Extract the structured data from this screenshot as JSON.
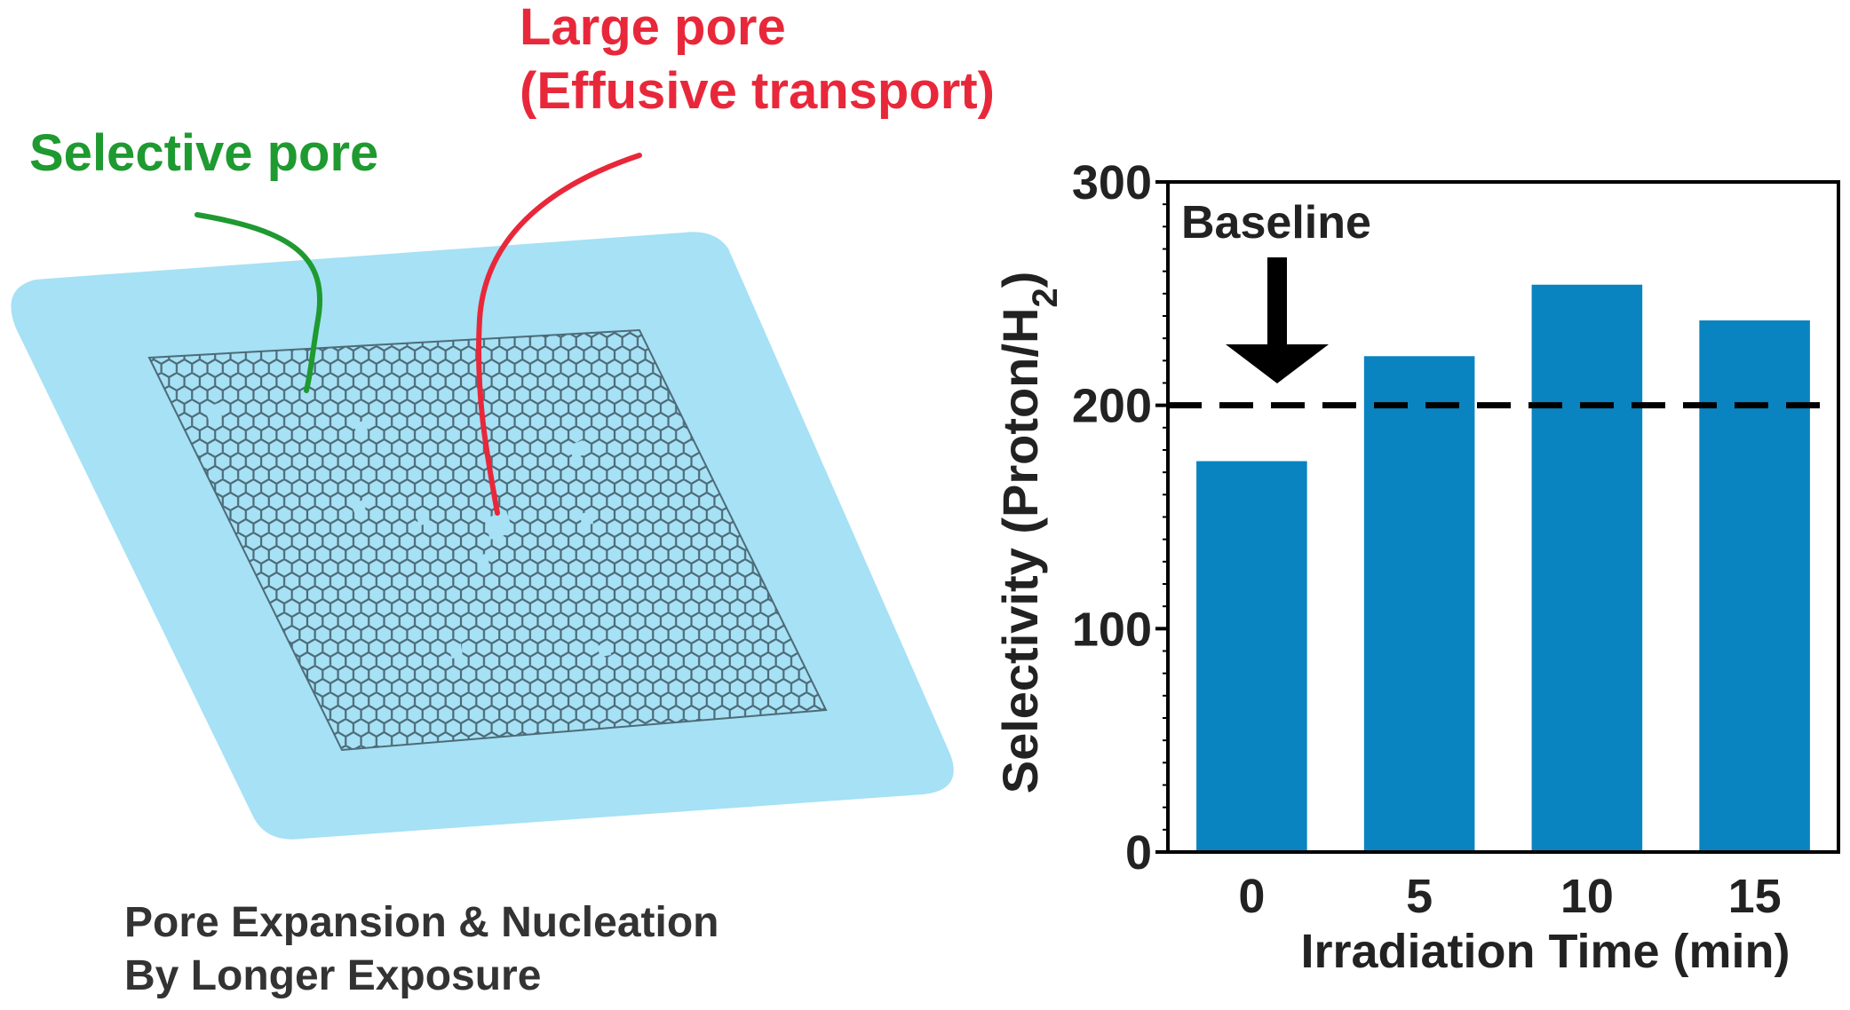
{
  "illustration": {
    "label_large_pore_line1": "Large pore",
    "label_large_pore_line2": "(Effusive transport)",
    "label_selective_pore": "Selective pore",
    "caption_line1": "Pore Expansion & Nucleation",
    "caption_line2": "By Longer Exposure",
    "colors": {
      "substrate": "#a6e1f5",
      "lattice": "#4d6b78",
      "selective_label": "#1e9a30",
      "large_label": "#e8283a"
    }
  },
  "chart_data": {
    "type": "bar",
    "title": "",
    "xlabel": "Irradiation Time (min)",
    "ylabel_main": "Selectivity (Proton/H",
    "ylabel_sub": "2",
    "ylabel_close": ")",
    "categories": [
      "0",
      "5",
      "10",
      "15"
    ],
    "values": [
      175,
      222,
      254,
      238
    ],
    "ylim": [
      0,
      300
    ],
    "yticks": [
      "0",
      "100",
      "200",
      "300"
    ],
    "bar_color": "#0a84c0",
    "baseline": {
      "value": 200,
      "label": "Baseline",
      "style": "dashed"
    },
    "grid": false
  }
}
